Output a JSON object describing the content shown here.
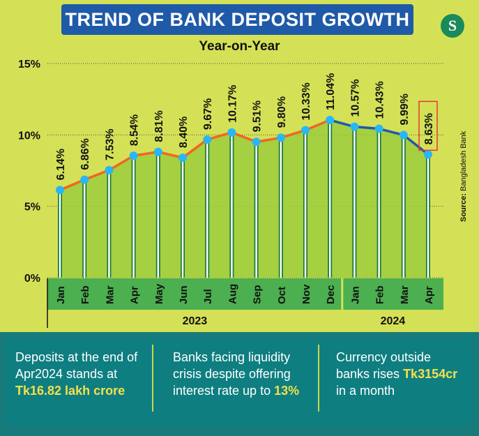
{
  "title": "TREND OF BANK DEPOSIT GROWTH",
  "subtitle": "Year-on-Year",
  "logo_text": "S",
  "source_label": "Source:",
  "source_value": "Bangladesh Bank",
  "chart_data": {
    "type": "line",
    "title": "TREND OF BANK DEPOSIT GROWTH",
    "subtitle": "Year-on-Year",
    "categories": [
      "Jan",
      "Feb",
      "Mar",
      "Apr",
      "May",
      "Jun",
      "Jul",
      "Aug",
      "Sep",
      "Oct",
      "Nov",
      "Dec",
      "Jan",
      "Feb",
      "Mar",
      "Apr"
    ],
    "years": [
      {
        "label": "2023",
        "count": 12
      },
      {
        "label": "2024",
        "count": 4
      }
    ],
    "values": [
      6.14,
      6.86,
      7.53,
      8.54,
      8.81,
      8.4,
      9.67,
      10.17,
      9.51,
      9.8,
      10.33,
      11.04,
      10.57,
      10.43,
      9.99,
      8.63
    ],
    "labels": [
      "6.14%",
      "6.86%",
      "7.53%",
      "8.54%",
      "8.81%",
      "8.40%",
      "9.67%",
      "10.17%",
      "9.51%",
      "9.80%",
      "10.33%",
      "11.04%",
      "10.57%",
      "10.43%",
      "9.99%",
      "8.63%"
    ],
    "yticks": [
      0,
      5,
      10,
      15
    ],
    "ytick_labels": [
      "0%",
      "5%",
      "10%",
      "15%"
    ],
    "ylim": [
      0,
      15
    ],
    "highlighted_index": 15,
    "series_colors": {
      "2023": "#f26522",
      "2024": "#1f5aa8",
      "marker": "#29b6f6",
      "area": "#9ccc3d"
    }
  },
  "info": [
    {
      "text": "Deposits at the end of Apr2024 stands at",
      "highlight": "Tk16.82 lakh crore",
      "suffix": ""
    },
    {
      "text": "Banks facing liquidity crisis despite offering interest rate up to",
      "highlight": "13%",
      "suffix": ""
    },
    {
      "text": "Currency outside banks rises",
      "highlight": "Tk3154cr",
      "suffix": "in a month"
    }
  ]
}
